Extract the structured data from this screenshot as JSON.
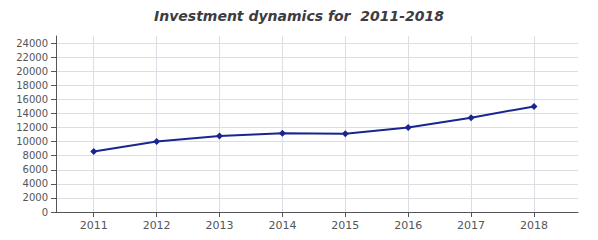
{
  "chart_data": {
    "type": "line",
    "title": "Investment dynamics for  2011-2018",
    "x": [
      2011,
      2012,
      2013,
      2014,
      2015,
      2016,
      2017,
      2018
    ],
    "values": [
      8600,
      10000,
      10800,
      11200,
      11100,
      12000,
      13400,
      15000
    ],
    "color": "#1a2590",
    "marker": "diamond",
    "xlim": [
      2010.4,
      2018.7
    ],
    "xticks": [
      2011,
      2012,
      2013,
      2014,
      2015,
      2016,
      2017,
      2018
    ],
    "ylim": [
      0,
      25000
    ],
    "yticks": [
      0,
      2000,
      4000,
      6000,
      8000,
      10000,
      12000,
      14000,
      16000,
      18000,
      20000,
      22000,
      24000
    ],
    "grid": true
  }
}
